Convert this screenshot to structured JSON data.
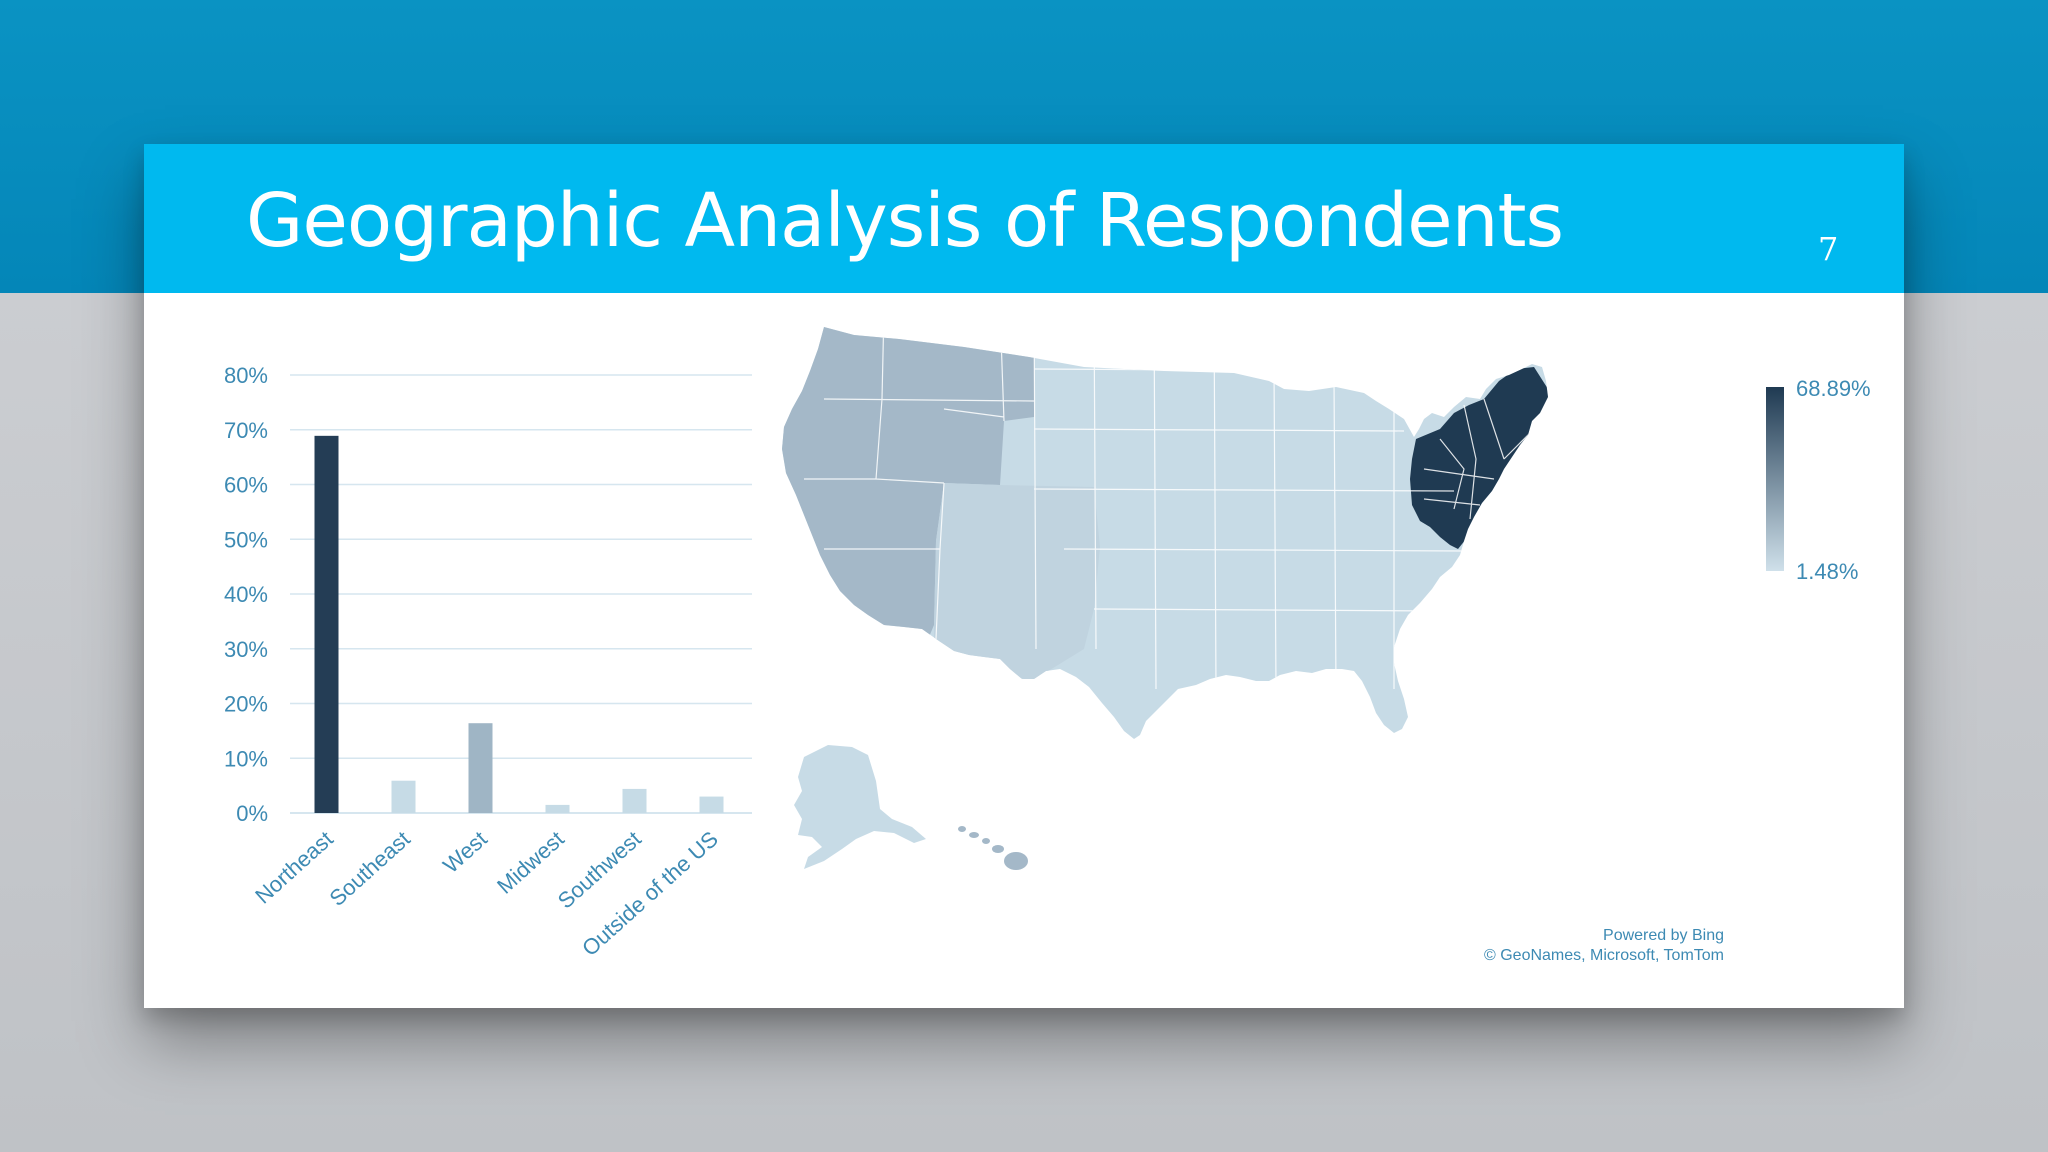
{
  "slide": {
    "title": "Geographic Analysis of Respondents",
    "page_number": "7"
  },
  "colors": {
    "title_bar": "#00b9ef",
    "top_band": "#0791c1",
    "axis_text": "#3d8ab3",
    "bar_northeast": "#243d55",
    "bar_west": "#9fb5c5",
    "bar_light": "#c6dbe6",
    "map_dark": "#1f3a52",
    "map_mid": "#a4b8c8",
    "map_light": "#c7dbe6"
  },
  "chart_data": [
    {
      "type": "bar",
      "categories": [
        "Northeast",
        "Southeast",
        "West",
        "Midwest",
        "Southwest",
        "Outside of the US"
      ],
      "values": [
        68.89,
        5.9,
        16.4,
        1.48,
        4.4,
        3.0
      ],
      "ytick_labels": [
        "0%",
        "10%",
        "20%",
        "30%",
        "40%",
        "50%",
        "60%",
        "70%",
        "80%"
      ],
      "ylim": [
        0,
        80
      ],
      "grid": true
    },
    {
      "type": "map",
      "region": "United States",
      "legend": {
        "max_label": "68.89%",
        "min_label": "1.48%",
        "placement": "right"
      },
      "regions": [
        {
          "name": "Northeast",
          "value": 68.89
        },
        {
          "name": "West",
          "value": 16.4
        },
        {
          "name": "Southeast",
          "value": 5.9
        },
        {
          "name": "Southwest",
          "value": 4.4
        },
        {
          "name": "Midwest",
          "value": 1.48
        }
      ]
    }
  ],
  "attribution": {
    "line1": "Powered by Bing",
    "line2": "© GeoNames, Microsoft, TomTom"
  }
}
